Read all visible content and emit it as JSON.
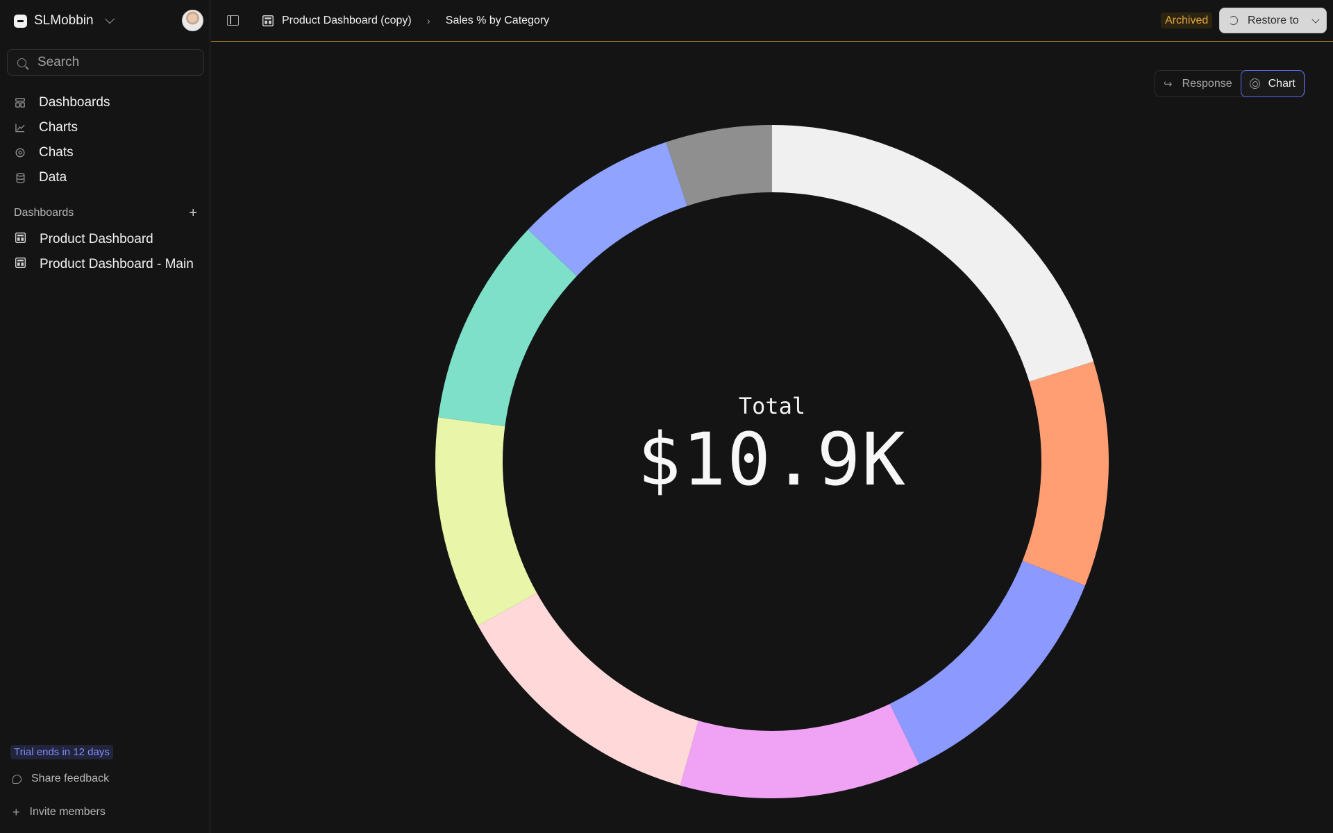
{
  "sidebar": {
    "workspace": "SLMobbin",
    "search_placeholder": "Search",
    "nav": [
      {
        "label": "Dashboards",
        "icon": "dashboards-icon"
      },
      {
        "label": "Charts",
        "icon": "chart-line-icon"
      },
      {
        "label": "Chats",
        "icon": "chat-icon"
      },
      {
        "label": "Data",
        "icon": "database-icon"
      }
    ],
    "dashboards_title": "Dashboards",
    "dashboards": [
      {
        "label": "Product Dashboard"
      },
      {
        "label": "Product Dashboard - Main"
      }
    ],
    "trial": "Trial ends in 12 days",
    "share_feedback": "Share feedback",
    "invite_members": "Invite members"
  },
  "header": {
    "breadcrumb_parent": "Product Dashboard (copy)",
    "breadcrumb_current": "Sales % by Category",
    "archived": "Archived",
    "restore": "Restore to"
  },
  "toggle": {
    "response": "Response",
    "chart": "Chart"
  },
  "chart_data": {
    "type": "pie",
    "center_label": "Total",
    "center_value": "$10.9K",
    "slices": [
      {
        "value": 20.2,
        "color": "#f0f0f0"
      },
      {
        "value": 10.8,
        "color": "#ff9e73"
      },
      {
        "value": 11.8,
        "color": "#8c99ff"
      },
      {
        "value": 11.6,
        "color": "#f0a3f5"
      },
      {
        "value": 12.5,
        "color": "#ffd9d9"
      },
      {
        "value": 10.2,
        "color": "#e9f5a8"
      },
      {
        "value": 10.0,
        "color": "#7ee0c8"
      },
      {
        "value": 7.8,
        "color": "#8fa3ff"
      },
      {
        "value": 5.1,
        "color": "#8f8f8f"
      }
    ]
  }
}
